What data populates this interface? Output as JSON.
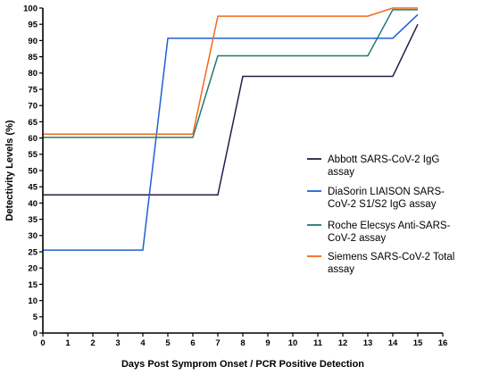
{
  "chart_data": {
    "type": "line",
    "title": "",
    "xlabel": "Days Post Symprom Onset / PCR Positive Detection",
    "ylabel": "Detectivity Levels (%)",
    "xlim": [
      0,
      16
    ],
    "ylim": [
      0,
      100
    ],
    "x_ticks": [
      0,
      1,
      2,
      3,
      4,
      5,
      6,
      7,
      8,
      9,
      10,
      11,
      12,
      13,
      14,
      15,
      16
    ],
    "y_ticks": [
      0,
      5,
      10,
      15,
      20,
      25,
      30,
      35,
      40,
      45,
      50,
      55,
      60,
      65,
      70,
      75,
      80,
      85,
      90,
      95,
      100
    ],
    "grid": false,
    "legend_position": "right",
    "series": [
      {
        "name": "Abbott SARS-CoV-2 IgG assay",
        "legend_lines": [
          "Abbott SARS-CoV-2 IgG",
          "assay"
        ],
        "color": "#2a1a4a",
        "x": [
          0,
          7,
          8,
          14,
          15
        ],
        "y": [
          42.5,
          42.5,
          79,
          79,
          95
        ]
      },
      {
        "name": "DiaSorin LIAISON SARS-CoV-2 S1/S2 IgG assay",
        "legend_lines": [
          "DiaSorin LIAISON SARS-",
          "CoV-2 S1/S2 IgG assay"
        ],
        "color": "#1f5fd6",
        "x": [
          0,
          4,
          5,
          14,
          15
        ],
        "y": [
          25.5,
          25.5,
          90.7,
          90.7,
          98
        ]
      },
      {
        "name": "Roche Elecsys Anti-SARS-CoV-2 assay",
        "legend_lines": [
          "Roche Elecsys Anti-SARS-",
          "CoV-2 assay"
        ],
        "color": "#1e7b73",
        "x": [
          0,
          6,
          7,
          13,
          14,
          15
        ],
        "y": [
          60.2,
          60.2,
          85.3,
          85.3,
          99.5,
          99.5
        ]
      },
      {
        "name": "Siemens SARS-CoV-2 Total assay",
        "legend_lines": [
          "Siemens SARS-CoV-2 Total",
          "assay"
        ],
        "color": "#f06a1c",
        "x": [
          0,
          6,
          7,
          13,
          14,
          15
        ],
        "y": [
          61.2,
          61.2,
          97.5,
          97.5,
          100,
          100
        ]
      }
    ]
  }
}
